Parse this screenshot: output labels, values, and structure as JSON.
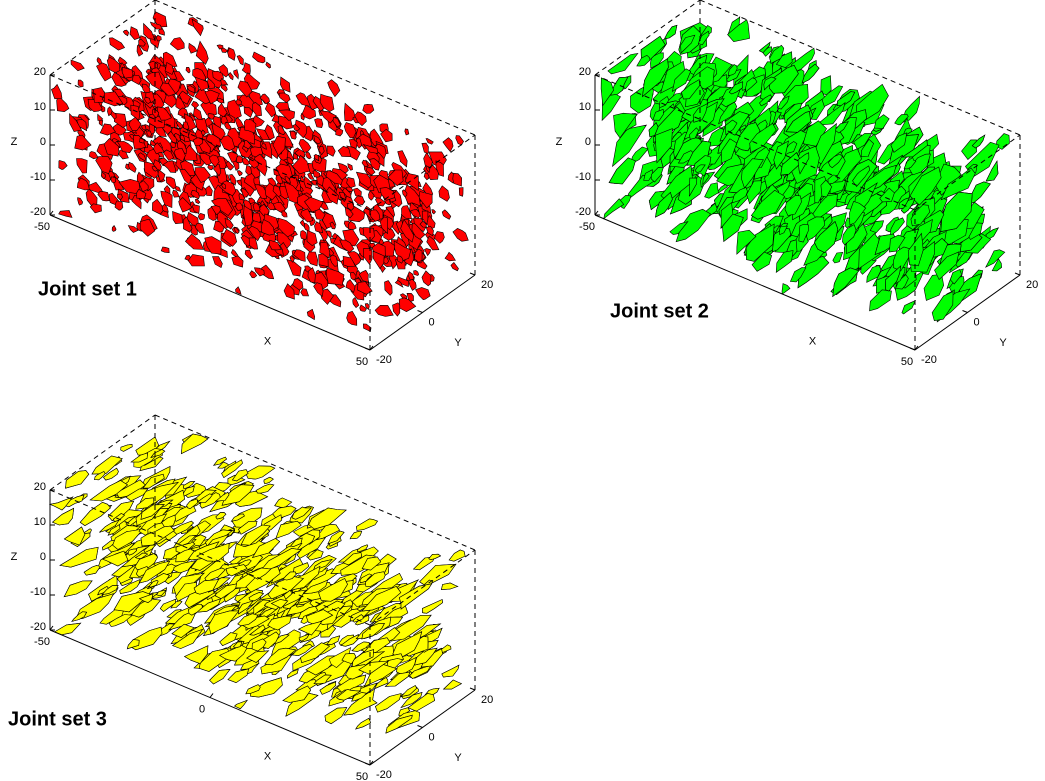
{
  "panels": [
    {
      "label": "Joint set 1",
      "color": "#ff0000",
      "z_label": "Z",
      "x_label": "X",
      "y_label": "Y",
      "z_ticks": [
        20,
        10,
        0,
        -10,
        -20
      ],
      "x_ticks": [
        -50,
        50
      ],
      "y_ticks": [
        20,
        0,
        -20
      ]
    },
    {
      "label": "Joint set 2",
      "color": "#00ff00",
      "z_label": "Z",
      "x_label": "X",
      "y_label": "Y",
      "z_ticks": [
        20,
        10,
        0,
        -10,
        -20
      ],
      "x_ticks": [
        -50,
        50
      ],
      "y_ticks": [
        20,
        0,
        -20
      ]
    },
    {
      "label": "Joint set 3",
      "color": "#ffff00",
      "z_label": "Z",
      "x_label": "X",
      "y_label": "Y",
      "z_ticks": [
        20,
        10,
        0,
        -10,
        -20
      ],
      "x_ticks": [
        -50,
        0,
        50
      ],
      "y_ticks": [
        20,
        0,
        -20
      ]
    }
  ]
}
